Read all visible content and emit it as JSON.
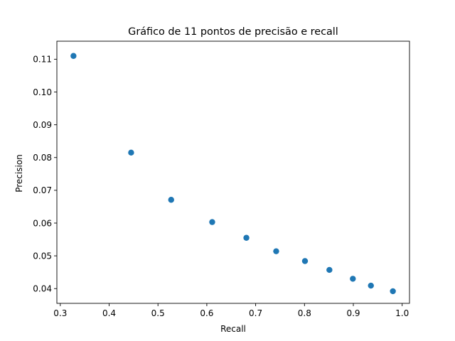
{
  "chart_data": {
    "type": "scatter",
    "title": "Gráfico de 11 pontos de precisão e recall",
    "xlabel": "Recall",
    "ylabel": "Precision",
    "xlim": [
      0.293,
      1.015
    ],
    "ylim": [
      0.0355,
      0.1155
    ],
    "xticks": [
      0.3,
      0.4,
      0.5,
      0.6,
      0.7,
      0.8,
      0.9,
      1.0
    ],
    "xtick_labels": [
      "0.3",
      "0.4",
      "0.5",
      "0.6",
      "0.7",
      "0.8",
      "0.9",
      "1.0"
    ],
    "yticks": [
      0.04,
      0.05,
      0.06,
      0.07,
      0.08,
      0.09,
      0.1,
      0.11
    ],
    "ytick_labels": [
      "0.04",
      "0.05",
      "0.06",
      "0.07",
      "0.08",
      "0.09",
      "0.10",
      "0.11"
    ],
    "grid": false,
    "marker_color": "#1f77b4",
    "series": [
      {
        "x": [
          0.327,
          0.445,
          0.527,
          0.611,
          0.681,
          0.742,
          0.801,
          0.851,
          0.899,
          0.936,
          0.981
        ],
        "y": [
          0.111,
          0.0815,
          0.0671,
          0.0603,
          0.0555,
          0.0514,
          0.0484,
          0.0457,
          0.043,
          0.0409,
          0.0392
        ]
      }
    ]
  }
}
